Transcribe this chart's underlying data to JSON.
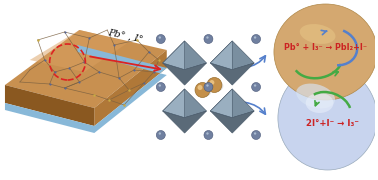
{
  "bg_color": "#ffffff",
  "arrow_label": "Pb° , I°",
  "eq_top": "2I°+I⁻ → I₃⁻",
  "eq_bottom": "Pb° + I₃⁻ → PbI₂+I⁻",
  "sphere_top_color": "#c8d4ee",
  "sphere_top_highlight": "#e8edf8",
  "sphere_bot_color": "#d4a870",
  "sphere_bot_highlight": "#e8c898",
  "oct_face_light": "#8899aa",
  "oct_face_dark": "#5a6a7a",
  "oct_edge": "#445566",
  "ball_pb_color": "#c4904a",
  "ball_pb_edge": "#9a7030",
  "corner_ball_color": "#7788aa",
  "corner_ball_edge": "#556688",
  "film_top_color": "#c89050",
  "film_top_light": "#e8b870",
  "film_side_color": "#b07838",
  "film_front_color": "#8a5820",
  "film_blue_layer": "#88b8d8",
  "grain_color": "#7a6040",
  "grain_dot_blue": "#556699",
  "grain_dot_yellow": "#c8aa44",
  "red_circle_color": "#dd2222",
  "red_arrow_color": "#dd2222",
  "blue_arrow_color": "#5580cc",
  "green_arc_color": "#44aa44",
  "eq_text_color": "#cc2222"
}
